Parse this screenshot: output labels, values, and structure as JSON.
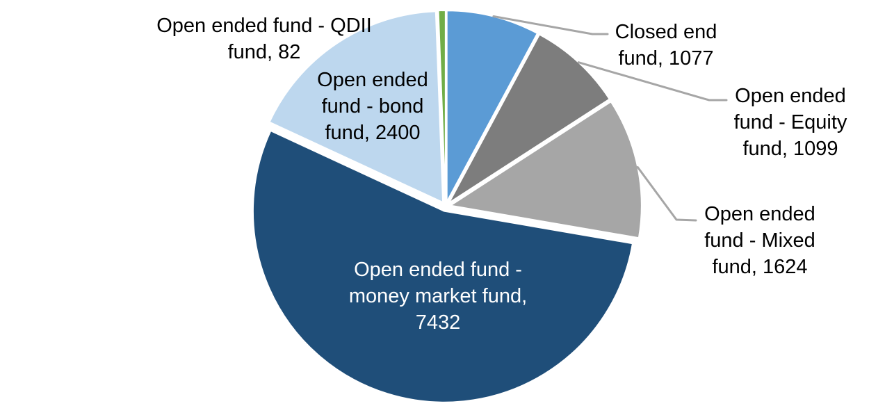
{
  "chart_data": {
    "type": "pie",
    "background": "#FFFFFF",
    "total": 13714,
    "start_angle_deg": 0,
    "direction": "clockwise",
    "exploded": true,
    "leader_line_color": "#A6A6A6",
    "slice_border_color": "#FFFFFF",
    "slices": [
      {
        "label": "Closed end fund",
        "value": 1077,
        "color": "#5B9BD5",
        "label_color": "#000000",
        "label_placement": "outside-leader",
        "label_lines": [
          "Closed end",
          "fund, 1077"
        ]
      },
      {
        "label": "Open ended fund - Equity fund",
        "value": 1099,
        "color": "#7D7D7D",
        "label_color": "#000000",
        "label_placement": "outside-leader",
        "label_lines": [
          "Open ended",
          "fund - Equity",
          "fund, 1099"
        ]
      },
      {
        "label": "Open ended fund - Mixed fund",
        "value": 1624,
        "color": "#A6A6A6",
        "label_color": "#000000",
        "label_placement": "outside-leader",
        "label_lines": [
          "Open ended",
          "fund - Mixed",
          "fund, 1624"
        ]
      },
      {
        "label": "Open ended fund - money market fund",
        "value": 7432,
        "color": "#1F4E79",
        "label_color": "#FFFFFF",
        "label_placement": "inside",
        "label_lines": [
          "Open ended fund -",
          "money market fund,",
          "7432"
        ]
      },
      {
        "label": "Open ended fund - bond fund",
        "value": 2400,
        "color": "#BDD7EE",
        "label_color": "#000000",
        "label_placement": "inside",
        "label_lines": [
          "Open ended",
          "fund - bond",
          "fund, 2400"
        ]
      },
      {
        "label": "Open ended fund - QDII fund",
        "value": 82,
        "color": "#70AD47",
        "label_color": "#000000",
        "label_placement": "outside",
        "label_lines": [
          "Open ended fund - QDII",
          "fund, 82"
        ]
      }
    ]
  }
}
